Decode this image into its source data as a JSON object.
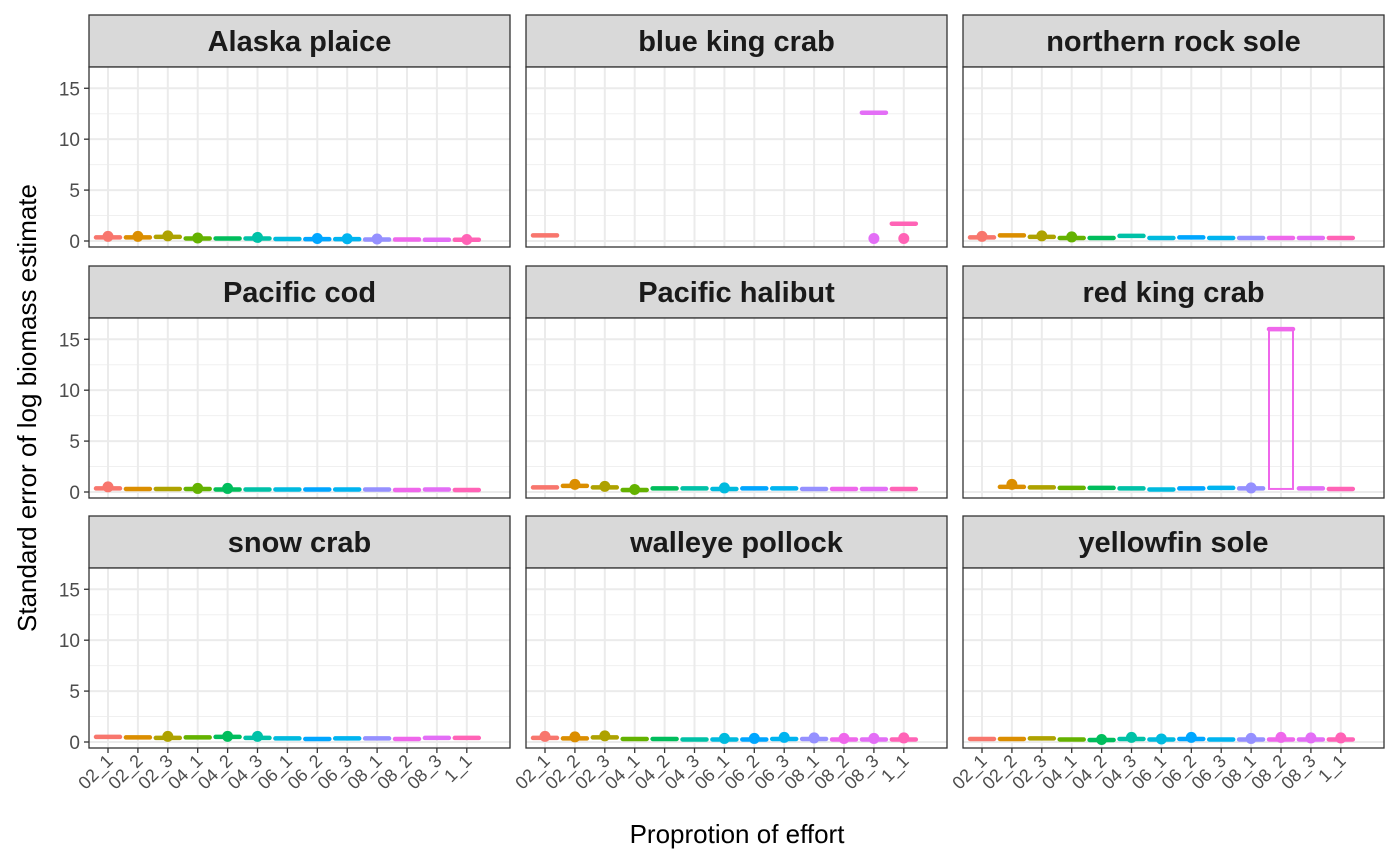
{
  "chart_data": {
    "type": "boxplot",
    "facet_layout": "3x3",
    "xlabel": "Proprotion of effort",
    "ylabel": "Standard error of log biomass estimate",
    "ylim": [
      0,
      16.5
    ],
    "y_ticks": [
      0,
      5,
      10,
      15
    ],
    "categories": [
      "02_1",
      "02_2",
      "02_3",
      "04_1",
      "04_2",
      "04_3",
      "06_1",
      "06_2",
      "06_3",
      "08_1",
      "08_2",
      "08_3",
      "1_1"
    ],
    "grid": true,
    "legend": "none",
    "colors": [
      "#F8766D",
      "#DB8E00",
      "#AEA200",
      "#64B200",
      "#00BD5C",
      "#00C1A7",
      "#00BADE",
      "#00A6FF",
      "#00B4F0",
      "#9590FF",
      "#EF67EB",
      "#E36EF6",
      "#FF63B6"
    ],
    "panels": [
      {
        "title": "Alaska plaice",
        "values": [
          0.35,
          0.35,
          0.4,
          0.25,
          0.25,
          0.25,
          0.2,
          0.18,
          0.18,
          0.15,
          0.15,
          0.12,
          0.12
        ],
        "outliers": [
          [
            0,
            0.45
          ],
          [
            1,
            0.45
          ],
          [
            2,
            0.5
          ],
          [
            3,
            0.3
          ],
          [
            5,
            0.35
          ],
          [
            7,
            0.25
          ],
          [
            8,
            0.22
          ],
          [
            9,
            0.2
          ],
          [
            12,
            0.15
          ]
        ]
      },
      {
        "title": "blue king crab",
        "values": [
          0.55,
          null,
          null,
          null,
          null,
          null,
          null,
          null,
          null,
          null,
          null,
          12.6,
          1.7
        ],
        "outliers": [
          [
            11,
            0.25
          ],
          [
            12,
            0.25
          ]
        ]
      },
      {
        "title": "northern rock sole",
        "values": [
          0.35,
          0.55,
          0.4,
          0.3,
          0.3,
          0.5,
          0.3,
          0.35,
          0.3,
          0.3,
          0.3,
          0.3,
          0.3
        ],
        "outliers": [
          [
            0,
            0.45
          ],
          [
            2,
            0.5
          ],
          [
            3,
            0.4
          ]
        ]
      },
      {
        "title": "Pacific cod",
        "values": [
          0.35,
          0.3,
          0.3,
          0.3,
          0.25,
          0.25,
          0.25,
          0.25,
          0.25,
          0.25,
          0.2,
          0.25,
          0.2
        ],
        "outliers": [
          [
            0,
            0.5
          ],
          [
            3,
            0.35
          ],
          [
            4,
            0.35
          ]
        ]
      },
      {
        "title": "Pacific halibut",
        "values": [
          0.45,
          0.6,
          0.45,
          0.2,
          0.35,
          0.35,
          0.3,
          0.35,
          0.35,
          0.3,
          0.3,
          0.3,
          0.3
        ],
        "outliers": [
          [
            1,
            0.75
          ],
          [
            2,
            0.55
          ],
          [
            3,
            0.25
          ],
          [
            6,
            0.4
          ]
        ]
      },
      {
        "title": "red king crab",
        "values": [
          null,
          0.5,
          0.45,
          0.4,
          0.4,
          0.35,
          0.25,
          0.35,
          0.4,
          0.35,
          16.0,
          0.35,
          0.3
        ],
        "outliers": [
          [
            1,
            0.75
          ],
          [
            9,
            0.4
          ]
        ],
        "boxes": [
          {
            "index": 10,
            "lower": 0.3,
            "upper": 16.0
          }
        ]
      },
      {
        "title": "snow crab",
        "values": [
          0.5,
          0.45,
          0.4,
          0.45,
          0.5,
          0.4,
          0.35,
          0.3,
          0.35,
          0.35,
          0.3,
          0.4,
          0.4
        ],
        "outliers": [
          [
            2,
            0.55
          ],
          [
            4,
            0.55
          ],
          [
            5,
            0.55
          ]
        ]
      },
      {
        "title": "walleye pollock",
        "values": [
          0.4,
          0.35,
          0.45,
          0.3,
          0.3,
          0.25,
          0.25,
          0.25,
          0.3,
          0.3,
          0.25,
          0.25,
          0.25
        ],
        "outliers": [
          [
            0,
            0.55
          ],
          [
            1,
            0.5
          ],
          [
            2,
            0.6
          ],
          [
            6,
            0.35
          ],
          [
            7,
            0.35
          ],
          [
            8,
            0.45
          ],
          [
            9,
            0.4
          ],
          [
            10,
            0.35
          ],
          [
            11,
            0.35
          ],
          [
            12,
            0.4
          ]
        ]
      },
      {
        "title": "yellowfin sole",
        "values": [
          0.3,
          0.3,
          0.35,
          0.25,
          0.2,
          0.3,
          0.25,
          0.3,
          0.25,
          0.25,
          0.25,
          0.25,
          0.25
        ],
        "outliers": [
          [
            4,
            0.25
          ],
          [
            5,
            0.45
          ],
          [
            6,
            0.3
          ],
          [
            7,
            0.45
          ],
          [
            9,
            0.35
          ],
          [
            10,
            0.45
          ],
          [
            11,
            0.4
          ],
          [
            12,
            0.4
          ]
        ]
      }
    ]
  }
}
